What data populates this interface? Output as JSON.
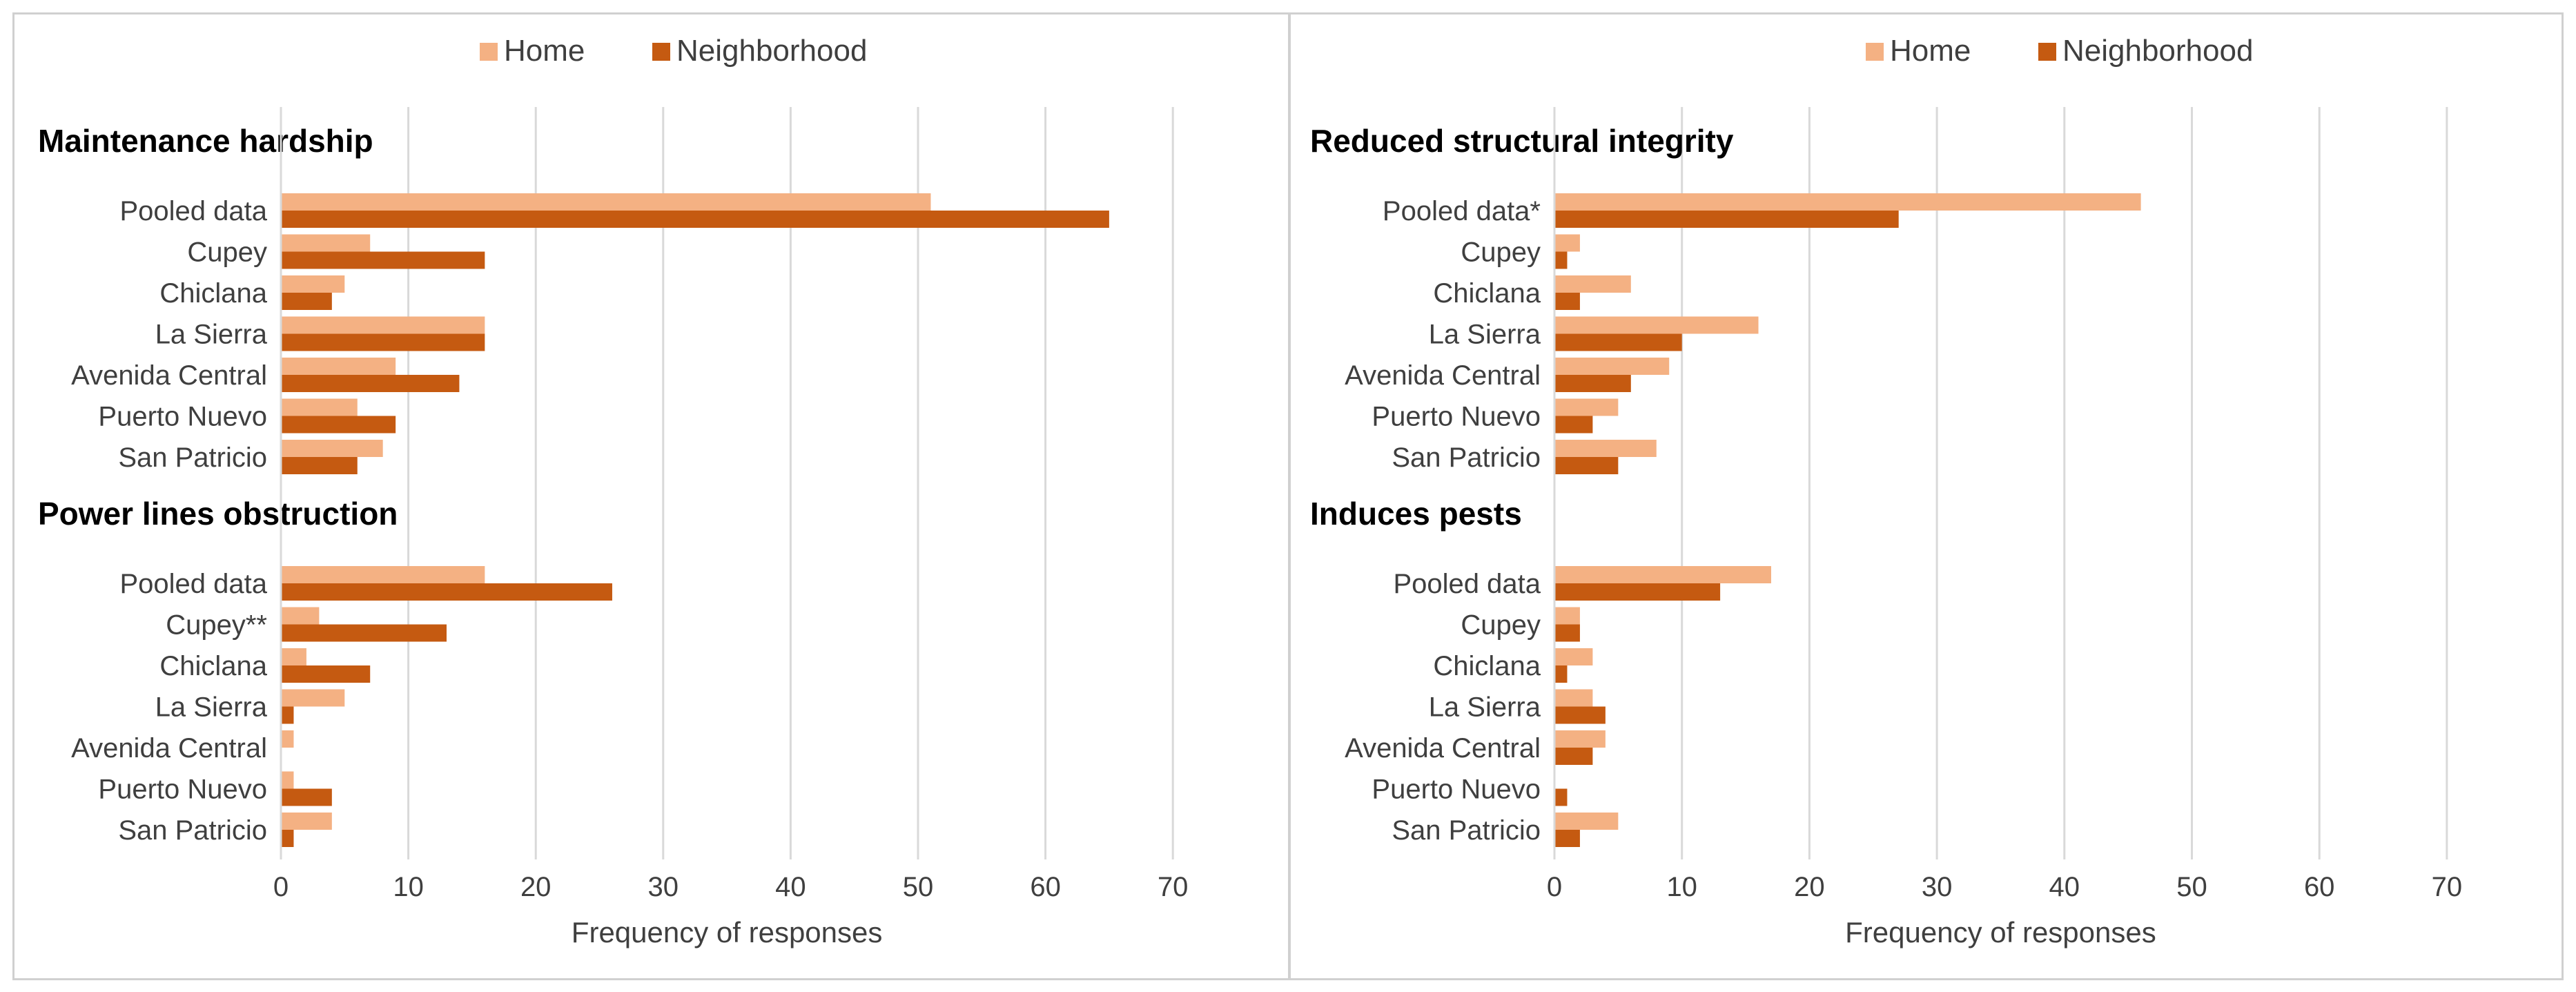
{
  "colors": {
    "home": "#f4b183",
    "neighborhood": "#c55a11"
  },
  "chart_data": [
    {
      "type": "bar",
      "orientation": "horizontal",
      "legend": [
        "Home",
        "Neighborhood"
      ],
      "legend_position": "top-center",
      "xlabel": "Frequency of responses",
      "xlim": [
        0,
        70
      ],
      "xticks": [
        0,
        10,
        20,
        30,
        40,
        50,
        60,
        70
      ],
      "grid": true,
      "groups": [
        {
          "title": "Maintenance hardship",
          "categories": [
            "Pooled data",
            "Cupey",
            "Chiclana",
            "La Sierra",
            "Avenida Central",
            "Puerto Nuevo",
            "San Patricio"
          ],
          "series": [
            {
              "name": "Home",
              "values": [
                51,
                7,
                5,
                16,
                9,
                6,
                8
              ]
            },
            {
              "name": "Neighborhood",
              "values": [
                65,
                16,
                4,
                16,
                14,
                9,
                6
              ]
            }
          ]
        },
        {
          "title": "Power lines obstruction",
          "categories": [
            "Pooled data",
            "Cupey**",
            "Chiclana",
            "La Sierra",
            "Avenida Central",
            "Puerto Nuevo",
            "San Patricio"
          ],
          "series": [
            {
              "name": "Home",
              "values": [
                16,
                3,
                2,
                5,
                1,
                1,
                4
              ]
            },
            {
              "name": "Neighborhood",
              "values": [
                26,
                13,
                7,
                1,
                0,
                4,
                1
              ]
            }
          ]
        }
      ]
    },
    {
      "type": "bar",
      "orientation": "horizontal",
      "legend": [
        "Home",
        "Neighborhood"
      ],
      "legend_position": "top-center",
      "xlabel": "Frequency of responses",
      "xlim": [
        0,
        70
      ],
      "xticks": [
        0,
        10,
        20,
        30,
        40,
        50,
        60,
        70
      ],
      "grid": true,
      "groups": [
        {
          "title": "Reduced structural integrity",
          "categories": [
            "Pooled data*",
            "Cupey",
            "Chiclana",
            "La Sierra",
            "Avenida Central",
            "Puerto Nuevo",
            "San Patricio"
          ],
          "series": [
            {
              "name": "Home",
              "values": [
                46,
                2,
                6,
                16,
                9,
                5,
                8
              ]
            },
            {
              "name": "Neighborhood",
              "values": [
                27,
                1,
                2,
                10,
                6,
                3,
                5
              ]
            }
          ]
        },
        {
          "title": "Induces pests",
          "categories": [
            "Pooled data",
            "Cupey",
            "Chiclana",
            "La Sierra",
            "Avenida Central",
            "Puerto Nuevo",
            "San Patricio"
          ],
          "series": [
            {
              "name": "Home",
              "values": [
                17,
                2,
                3,
                3,
                4,
                0,
                5
              ]
            },
            {
              "name": "Neighborhood",
              "values": [
                13,
                2,
                1,
                4,
                3,
                1,
                2
              ]
            }
          ]
        }
      ]
    }
  ]
}
